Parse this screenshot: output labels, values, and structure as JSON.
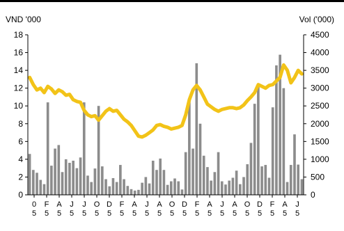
{
  "chart_data": {
    "type": "line",
    "ylabel_left": "VND '000",
    "ylabel_right": "Vol ('000)",
    "ylim_left": [
      0,
      18
    ],
    "ylim_right": [
      0,
      4500
    ],
    "yticks_left": [
      "0",
      "2",
      "4",
      "6",
      "8",
      "10",
      "12",
      "14",
      "16",
      "18"
    ],
    "yticks_right": [
      "0",
      "500",
      "1000",
      "1500",
      "2000",
      "2500",
      "3000",
      "3500",
      "4000",
      "4500"
    ],
    "x_tick_labels": [
      [
        "0",
        "5"
      ],
      [
        "F",
        "5"
      ],
      [
        "A",
        "5"
      ],
      [
        "J",
        "5"
      ],
      [
        "J",
        "5"
      ],
      [
        "O",
        "5"
      ],
      [
        "D",
        "5"
      ],
      [
        "F",
        "5"
      ],
      [
        "A",
        "5"
      ],
      [
        "J",
        "5"
      ],
      [
        "A",
        "5"
      ],
      [
        "O",
        "5"
      ],
      [
        "D",
        "5"
      ],
      [
        "F",
        "5"
      ],
      [
        "A",
        "5"
      ],
      [
        "J",
        "5"
      ],
      [
        "A",
        "5"
      ],
      [
        "O",
        "5"
      ],
      [
        "D",
        "5"
      ],
      [
        "F",
        "5"
      ],
      [
        "A",
        "5"
      ],
      [
        "J",
        "5"
      ]
    ],
    "series": [
      {
        "axis": "left",
        "type": "line",
        "color": "#f2c318",
        "values": [
          13.2,
          12.4,
          11.8,
          12.0,
          11.5,
          12.2,
          11.9,
          11.4,
          11.8,
          11.6,
          11.2,
          11.3,
          10.7,
          10.5,
          10.4,
          9.5,
          9.0,
          8.8,
          8.9,
          8.4,
          8.9,
          9.4,
          9.7,
          9.4,
          9.5,
          9.0,
          8.5,
          8.2,
          7.8,
          7.2,
          6.6,
          6.5,
          6.7,
          7.0,
          7.3,
          7.8,
          7.9,
          7.7,
          7.6,
          7.4,
          7.5,
          7.6,
          7.8,
          9.0,
          10.7,
          11.8,
          12.3,
          11.8,
          11.0,
          10.2,
          9.9,
          9.6,
          9.4,
          9.6,
          9.7,
          9.8,
          9.8,
          9.7,
          9.8,
          10.1,
          10.6,
          11.0,
          11.5,
          12.4,
          12.2,
          12.0,
          12.3,
          12.4,
          12.8,
          13.2,
          14.6,
          14.0,
          12.6,
          13.2,
          14.0,
          13.6
        ]
      },
      {
        "axis": "right",
        "type": "bar",
        "color": "#8c8c8c",
        "values": [
          1150,
          700,
          620,
          420,
          300,
          2600,
          820,
          1300,
          1400,
          640,
          1000,
          900,
          960,
          750,
          1050,
          2600,
          540,
          360,
          740,
          2500,
          800,
          440,
          240,
          470,
          360,
          840,
          440,
          250,
          160,
          120,
          140,
          340,
          500,
          320,
          960,
          700,
          1020,
          700,
          280,
          380,
          460,
          380,
          150,
          1200,
          2700,
          1300,
          3700,
          2000,
          1100,
          780,
          400,
          640,
          1200,
          380,
          290,
          400,
          480,
          680,
          300,
          500,
          860,
          1460,
          2560,
          3040,
          800,
          840,
          480,
          2460,
          3640,
          3940,
          3000,
          360,
          840,
          1700,
          850,
          440
        ]
      }
    ]
  }
}
